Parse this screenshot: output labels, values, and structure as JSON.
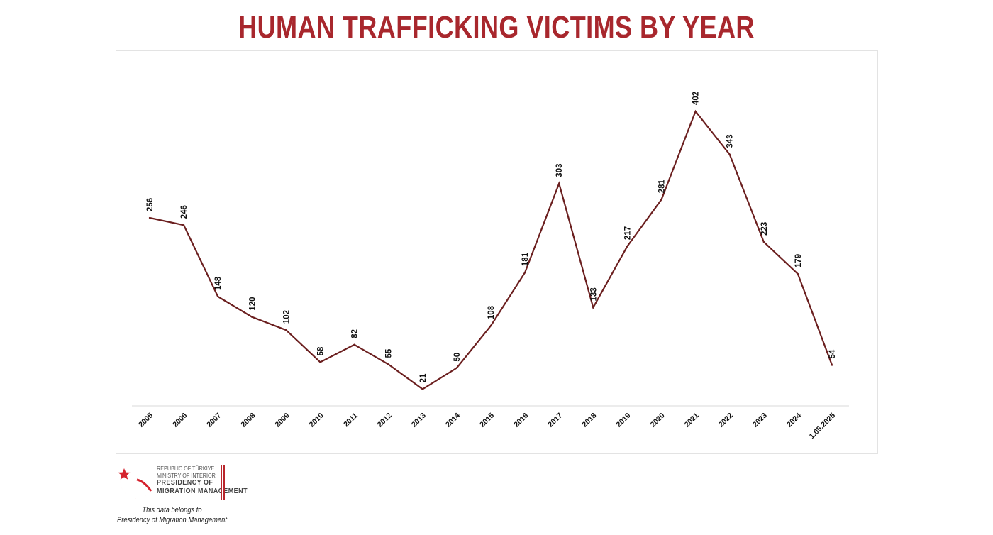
{
  "title": "HUMAN TRAFFICKING VICTIMS BY YEAR",
  "colors": {
    "title": "#a8272d",
    "line": "#6b1f1f",
    "axis": "#d9d9d9",
    "label": "#111111",
    "logo_red": "#d5232e",
    "logo_bar": "#b9262c"
  },
  "logo": {
    "line1": "REPUBLIC OF TÜRKIYE",
    "line2": "MINISTRY OF INTERIOR",
    "line3": "PRESIDENCY OF",
    "line4": "MIGRATION MANAGEMENT"
  },
  "footnote": {
    "line1": "This data belongs to",
    "line2": "Presidency of Migration Management"
  },
  "chart_data": {
    "type": "line",
    "title": "HUMAN TRAFFICKING VICTIMS BY YEAR",
    "xlabel": "",
    "ylabel": "",
    "categories": [
      "2005",
      "2006",
      "2007",
      "2008",
      "2009",
      "2010",
      "2011",
      "2012",
      "2013",
      "2014",
      "2015",
      "2016",
      "2017",
      "2018",
      "2019",
      "2020",
      "2021",
      "2022",
      "2023",
      "2024",
      "1.05.2025"
    ],
    "series": [
      {
        "values": [
          256,
          246,
          148,
          120,
          102,
          58,
          82,
          55,
          21,
          50,
          108,
          181,
          303,
          133,
          217,
          281,
          402,
          343,
          223,
          179,
          54
        ]
      }
    ],
    "ylim": [
      0,
      440
    ],
    "grid": false,
    "data_labels": true,
    "legend": "none"
  }
}
